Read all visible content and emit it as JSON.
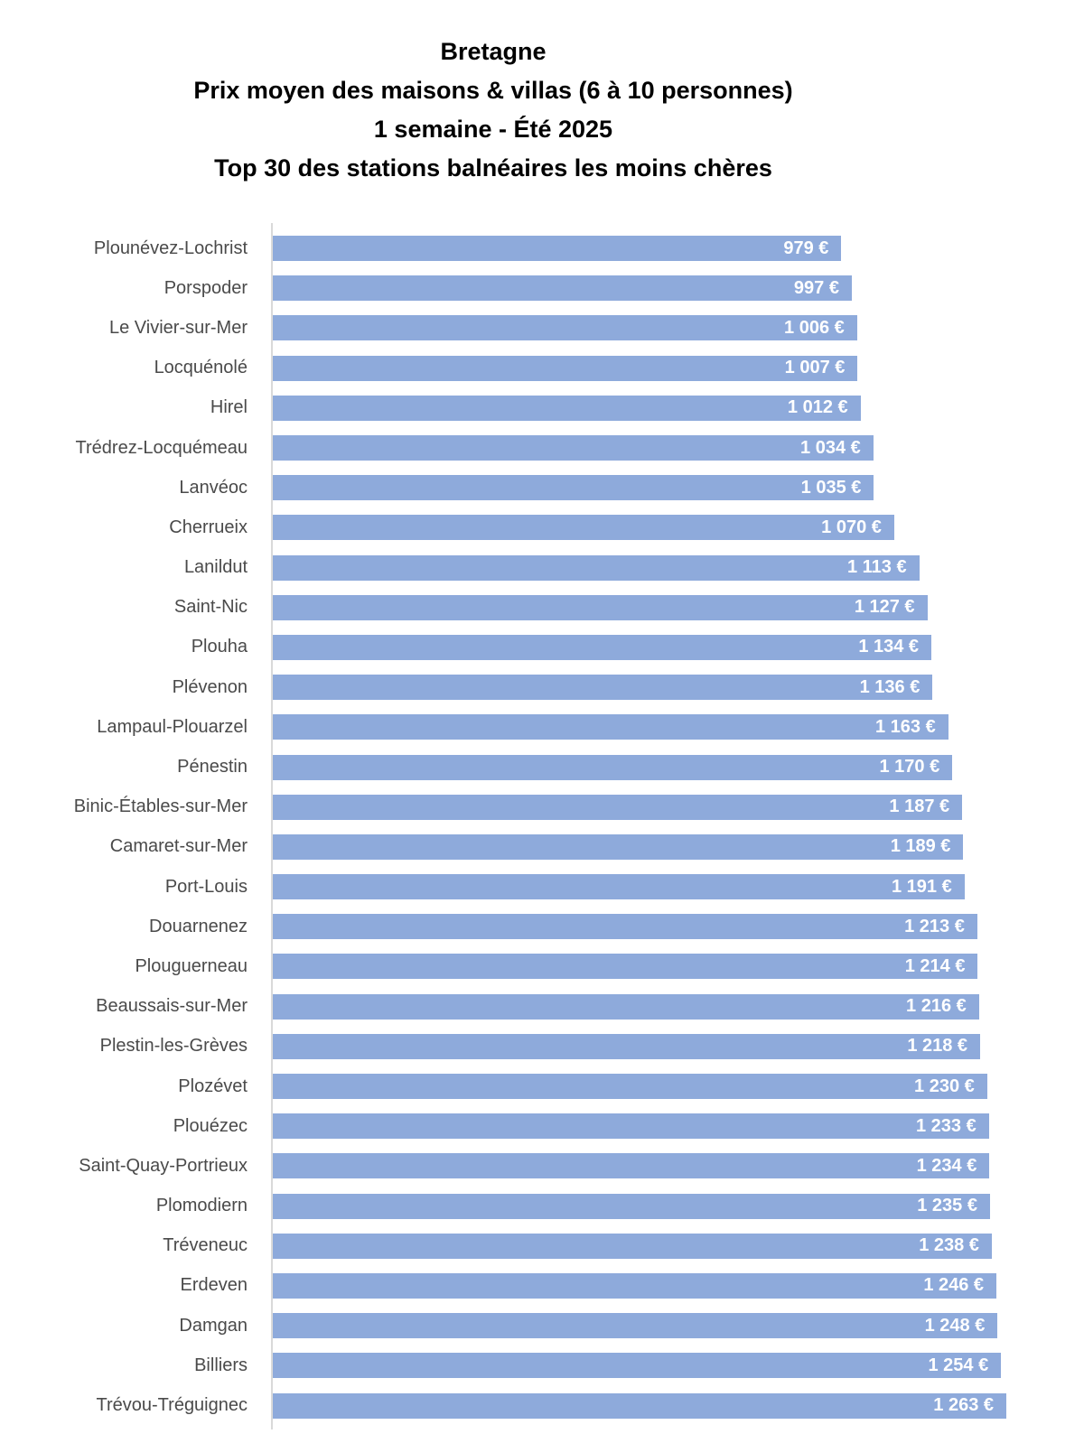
{
  "title": {
    "line1": "Bretagne",
    "line2": "Prix moyen des maisons & villas (6 à 10 personnes)",
    "line3": "1 semaine - Été 2025",
    "line4": "Top 30 des stations balnéaires les moins chères"
  },
  "chart_data": {
    "type": "bar",
    "orientation": "horizontal",
    "title": "Bretagne - Prix moyen des maisons & villas (6 à 10 personnes) - 1 semaine - Été 2025 - Top 30 des stations balnéaires les moins chères",
    "xlabel": "",
    "ylabel": "",
    "unit": "€",
    "xlim": [
      0,
      1263
    ],
    "grid": false,
    "legend": false,
    "bar_color": "#8EAADB",
    "value_label_color": "#FFFFFF",
    "category_label_color": "#4A4A4A",
    "axis_line_color": "#D9D9D9",
    "categories": [
      "Plounévez-Lochrist",
      "Porspoder",
      "Le Vivier-sur-Mer",
      "Locquénolé",
      "Hirel",
      "Trédrez-Locquémeau",
      "Lanvéoc",
      "Cherrueix",
      "Lanildut",
      "Saint-Nic",
      "Plouha",
      "Plévenon",
      "Lampaul-Plouarzel",
      "Pénestin",
      "Binic-Étables-sur-Mer",
      "Camaret-sur-Mer",
      "Port-Louis",
      "Douarnenez",
      "Plouguerneau",
      "Beaussais-sur-Mer",
      "Plestin-les-Grèves",
      "Plozévet",
      "Plouézec",
      "Saint-Quay-Portrieux",
      "Plomodiern",
      "Tréveneuc",
      "Erdeven",
      "Damgan",
      "Billiers",
      "Trévou-Tréguignec"
    ],
    "values": [
      979,
      997,
      1006,
      1007,
      1012,
      1034,
      1035,
      1070,
      1113,
      1127,
      1134,
      1136,
      1163,
      1170,
      1187,
      1189,
      1191,
      1213,
      1214,
      1216,
      1218,
      1230,
      1233,
      1234,
      1235,
      1238,
      1246,
      1248,
      1254,
      1263
    ],
    "value_labels": [
      "979 €",
      "997 €",
      "1 006 €",
      "1 007 €",
      "1 012 €",
      "1 034 €",
      "1 035 €",
      "1 070 €",
      "1 113 €",
      "1 127 €",
      "1 134 €",
      "1 136 €",
      "1 163 €",
      "1 170 €",
      "1 187 €",
      "1 189 €",
      "1 191 €",
      "1 213 €",
      "1 214 €",
      "1 216 €",
      "1 218 €",
      "1 230 €",
      "1 233 €",
      "1 234 €",
      "1 235 €",
      "1 238 €",
      "1 246 €",
      "1 248 €",
      "1 254 €",
      "1 263 €"
    ]
  }
}
